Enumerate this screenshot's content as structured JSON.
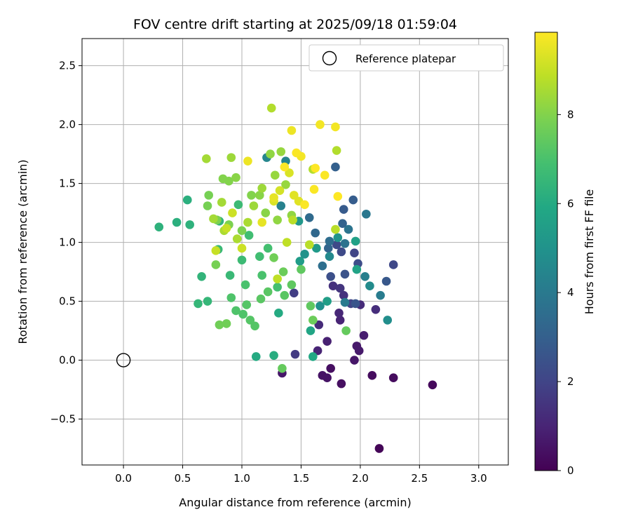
{
  "chart_data": {
    "type": "scatter",
    "title": "FOV centre drift starting at 2025/09/18 01:59:04",
    "xlabel": "Angular distance from reference (arcmin)",
    "ylabel": "Rotation from reference (arcmin)",
    "xlim": [
      -0.35,
      3.25
    ],
    "ylim": [
      -0.89,
      2.73
    ],
    "xticks": [
      0.0,
      0.5,
      1.0,
      1.5,
      2.0,
      2.5,
      3.0
    ],
    "xtick_labels": [
      "0.0",
      "0.5",
      "1.0",
      "1.5",
      "2.0",
      "2.5",
      "3.0"
    ],
    "yticks": [
      -0.5,
      0.0,
      0.5,
      1.0,
      1.5,
      2.0,
      2.5
    ],
    "ytick_labels": [
      "−0.5",
      "0.0",
      "0.5",
      "1.0",
      "1.5",
      "2.0",
      "2.5"
    ],
    "grid": true,
    "legend": {
      "position": "top-right",
      "entries": [
        "Reference platepar"
      ]
    },
    "reference_point": {
      "x": 0.0,
      "y": 0.0,
      "label": "Reference platepar"
    },
    "colorbar": {
      "label": "Hours from first FF file",
      "range": [
        0,
        9.85
      ],
      "ticks": [
        0,
        2,
        4,
        6,
        8
      ],
      "tick_labels": [
        "0",
        "2",
        "4",
        "6",
        "8"
      ],
      "colormap": "viridis"
    },
    "series": [
      {
        "name": "FOV centre",
        "points": [
          [
            2.16,
            -0.75,
            0.1
          ],
          [
            2.61,
            -0.21,
            0.2
          ],
          [
            2.28,
            -0.15,
            0.3
          ],
          [
            2.1,
            -0.13,
            0.3
          ],
          [
            1.84,
            -0.2,
            0.4
          ],
          [
            1.75,
            -0.07,
            0.4
          ],
          [
            1.68,
            -0.13,
            0.5
          ],
          [
            1.72,
            -0.15,
            0.5
          ],
          [
            1.34,
            -0.11,
            0.6
          ],
          [
            1.95,
            0.0,
            0.6
          ],
          [
            1.99,
            0.08,
            0.7
          ],
          [
            1.97,
            0.12,
            0.7
          ],
          [
            2.03,
            0.21,
            0.8
          ],
          [
            1.72,
            0.16,
            0.9
          ],
          [
            1.64,
            0.08,
            1.0
          ],
          [
            1.83,
            0.34,
            1.0
          ],
          [
            1.82,
            0.4,
            1.1
          ],
          [
            1.65,
            0.3,
            1.2
          ],
          [
            2.0,
            0.47,
            1.2
          ],
          [
            2.13,
            0.43,
            1.3
          ],
          [
            1.86,
            0.55,
            1.4
          ],
          [
            1.77,
            0.63,
            1.4
          ],
          [
            1.83,
            0.61,
            1.5
          ],
          [
            1.45,
            0.05,
            1.7
          ],
          [
            1.44,
            0.57,
            1.8
          ],
          [
            1.92,
            0.48,
            2.0
          ],
          [
            1.95,
            0.91,
            2.0
          ],
          [
            2.28,
            0.81,
            2.1
          ],
          [
            1.84,
            0.92,
            2.2
          ],
          [
            1.8,
            0.98,
            2.2
          ],
          [
            1.98,
            0.82,
            2.3
          ],
          [
            1.75,
            0.71,
            2.4
          ],
          [
            1.87,
            0.73,
            2.5
          ],
          [
            1.96,
            0.48,
            2.6
          ],
          [
            2.22,
            0.67,
            2.7
          ],
          [
            1.86,
            1.28,
            2.8
          ],
          [
            1.94,
            1.36,
            2.9
          ],
          [
            1.79,
            1.64,
            3.0
          ],
          [
            1.85,
            1.16,
            3.1
          ],
          [
            1.73,
            0.95,
            3.2
          ],
          [
            1.62,
            1.08,
            3.3
          ],
          [
            1.57,
            1.21,
            3.4
          ],
          [
            1.74,
            1.01,
            3.5
          ],
          [
            1.68,
            0.8,
            3.6
          ],
          [
            1.87,
            0.99,
            3.7
          ],
          [
            1.9,
            1.11,
            3.8
          ],
          [
            2.05,
            1.24,
            3.9
          ],
          [
            1.87,
            0.49,
            4.0
          ],
          [
            2.17,
            0.55,
            4.1
          ],
          [
            2.04,
            0.71,
            4.2
          ],
          [
            1.33,
            1.31,
            4.3
          ],
          [
            1.37,
            1.69,
            4.4
          ],
          [
            1.21,
            1.72,
            4.5
          ],
          [
            1.74,
            0.88,
            4.6
          ],
          [
            2.08,
            0.63,
            4.7
          ],
          [
            2.23,
            0.34,
            4.8
          ],
          [
            1.66,
            0.46,
            4.9
          ],
          [
            1.53,
            0.9,
            5.0
          ],
          [
            1.81,
            1.04,
            5.1
          ],
          [
            1.48,
            1.18,
            5.2
          ],
          [
            1.63,
            0.95,
            5.3
          ],
          [
            1.49,
            0.84,
            5.4
          ],
          [
            1.72,
            0.5,
            5.5
          ],
          [
            1.96,
            1.01,
            5.6
          ],
          [
            1.97,
            0.77,
            5.7
          ],
          [
            1.58,
            0.25,
            5.8
          ],
          [
            1.6,
            0.03,
            5.9
          ],
          [
            1.31,
            0.4,
            6.0
          ],
          [
            1.12,
            0.03,
            6.0
          ],
          [
            1.27,
            0.04,
            6.1
          ],
          [
            0.54,
            1.36,
            6.2
          ],
          [
            0.45,
            1.17,
            6.2
          ],
          [
            0.3,
            1.13,
            6.3
          ],
          [
            0.56,
            1.15,
            6.3
          ],
          [
            0.81,
            1.18,
            6.4
          ],
          [
            0.66,
            0.71,
            6.4
          ],
          [
            0.63,
            0.48,
            6.5
          ],
          [
            0.71,
            0.5,
            6.5
          ],
          [
            0.8,
            0.94,
            6.6
          ],
          [
            0.9,
            0.72,
            6.6
          ],
          [
            1.0,
            0.85,
            6.7
          ],
          [
            0.97,
            1.32,
            6.7
          ],
          [
            1.06,
            1.06,
            6.8
          ],
          [
            1.15,
            0.88,
            6.8
          ],
          [
            1.22,
            0.95,
            6.9
          ],
          [
            1.3,
            0.62,
            6.9
          ],
          [
            1.17,
            0.72,
            7.0
          ],
          [
            1.03,
            0.64,
            7.0
          ],
          [
            0.91,
            0.53,
            7.1
          ],
          [
            0.95,
            0.42,
            7.1
          ],
          [
            1.01,
            0.39,
            7.1
          ],
          [
            1.07,
            0.34,
            7.2
          ],
          [
            1.11,
            0.29,
            7.2
          ],
          [
            1.04,
            0.47,
            7.2
          ],
          [
            1.16,
            0.52,
            7.3
          ],
          [
            1.22,
            0.58,
            7.3
          ],
          [
            1.36,
            0.55,
            7.3
          ],
          [
            1.42,
            0.64,
            7.4
          ],
          [
            1.5,
            0.77,
            7.4
          ],
          [
            1.58,
            0.46,
            7.4
          ],
          [
            1.34,
            -0.07,
            7.5
          ],
          [
            1.88,
            0.25,
            7.5
          ],
          [
            1.6,
            0.34,
            7.6
          ],
          [
            1.35,
            0.75,
            7.6
          ],
          [
            1.27,
            0.87,
            7.7
          ],
          [
            0.87,
            0.31,
            7.7
          ],
          [
            0.81,
            0.3,
            7.7
          ],
          [
            0.78,
            0.81,
            7.8
          ],
          [
            0.71,
            1.31,
            7.8
          ],
          [
            0.72,
            1.4,
            7.8
          ],
          [
            0.79,
            1.19,
            7.9
          ],
          [
            0.89,
            1.15,
            7.9
          ],
          [
            1.0,
            1.1,
            7.9
          ],
          [
            1.08,
            1.4,
            8.0
          ],
          [
            0.84,
            1.54,
            8.0
          ],
          [
            0.89,
            1.52,
            8.0
          ],
          [
            0.95,
            1.55,
            8.1
          ],
          [
            1.15,
            1.4,
            8.1
          ],
          [
            1.2,
            1.25,
            8.1
          ],
          [
            1.3,
            1.19,
            8.2
          ],
          [
            1.42,
            1.23,
            8.2
          ],
          [
            1.24,
            1.75,
            8.2
          ],
          [
            1.28,
            1.57,
            8.3
          ],
          [
            1.33,
            1.77,
            8.3
          ],
          [
            1.37,
            1.49,
            8.3
          ],
          [
            1.17,
            1.46,
            8.4
          ],
          [
            1.1,
            1.31,
            8.4
          ],
          [
            0.91,
            1.72,
            8.4
          ],
          [
            0.7,
            1.71,
            8.5
          ],
          [
            0.83,
            1.34,
            8.5
          ],
          [
            0.76,
            1.2,
            8.5
          ],
          [
            0.85,
            1.1,
            8.6
          ],
          [
            0.96,
            1.03,
            8.6
          ],
          [
            1.05,
            1.17,
            8.6
          ],
          [
            1.25,
            2.14,
            8.7
          ],
          [
            1.8,
            1.78,
            8.7
          ],
          [
            1.6,
            1.62,
            8.7
          ],
          [
            1.79,
            1.11,
            8.8
          ],
          [
            1.43,
            1.19,
            8.8
          ],
          [
            1.57,
            0.98,
            8.8
          ],
          [
            1.3,
            0.69,
            8.9
          ],
          [
            1.38,
            1.0,
            8.9
          ],
          [
            0.87,
            1.12,
            9.0
          ],
          [
            0.78,
            0.93,
            9.0
          ],
          [
            0.92,
            1.25,
            9.1
          ],
          [
            1.0,
            0.95,
            9.1
          ],
          [
            1.32,
            1.44,
            9.2
          ],
          [
            1.27,
            1.35,
            9.3
          ],
          [
            1.4,
            1.59,
            9.3
          ],
          [
            1.48,
            1.35,
            9.4
          ],
          [
            1.44,
            1.4,
            9.4
          ],
          [
            1.27,
            1.38,
            9.5
          ],
          [
            1.17,
            1.17,
            9.5
          ],
          [
            1.05,
            1.69,
            9.6
          ],
          [
            1.42,
            1.95,
            9.6
          ],
          [
            1.66,
            2.0,
            9.7
          ],
          [
            1.79,
            1.98,
            9.7
          ],
          [
            1.5,
            1.73,
            9.7
          ],
          [
            1.46,
            1.76,
            9.8
          ],
          [
            1.61,
            1.45,
            9.8
          ],
          [
            1.53,
            1.32,
            9.8
          ],
          [
            1.7,
            1.57,
            9.8
          ],
          [
            1.62,
            1.63,
            9.9
          ],
          [
            1.36,
            1.64,
            9.9
          ],
          [
            1.81,
            1.39,
            9.9
          ]
        ]
      }
    ]
  }
}
